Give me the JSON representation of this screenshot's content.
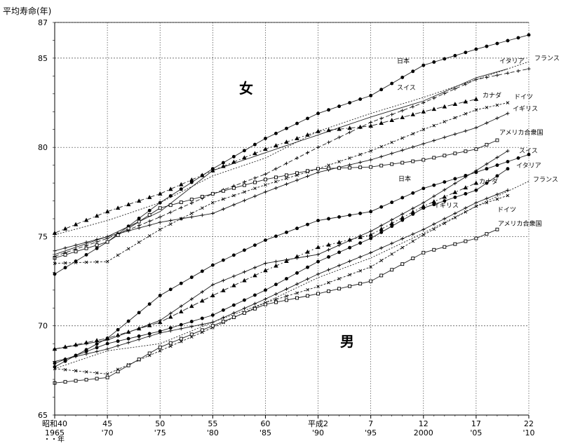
{
  "chart_data": {
    "type": "line",
    "ylabel": "平均寿命(年)",
    "ylim": [
      65,
      87
    ],
    "yticks": [
      65,
      70,
      75,
      80,
      85,
      87
    ],
    "xlim": [
      1965,
      2010
    ],
    "xticks": [
      {
        "x": 1965,
        "top": "昭和40",
        "bottom": "1965"
      },
      {
        "x": 1970,
        "top": "45",
        "bottom": "'70"
      },
      {
        "x": 1975,
        "top": "50",
        "bottom": "'75"
      },
      {
        "x": 1980,
        "top": "55",
        "bottom": "'80"
      },
      {
        "x": 1985,
        "top": "60",
        "bottom": "'85"
      },
      {
        "x": 1990,
        "top": "平成2",
        "bottom": "'90"
      },
      {
        "x": 1995,
        "top": "7",
        "bottom": "'95"
      },
      {
        "x": 2000,
        "top": "12",
        "bottom": "2000"
      },
      {
        "x": 2005,
        "top": "17",
        "bottom": "'05"
      },
      {
        "x": 2010,
        "top": "22",
        "bottom": "'10"
      }
    ],
    "xaxis_unit": "・・年",
    "grid": true,
    "group_labels": {
      "female": "女",
      "male": "男"
    },
    "series": [
      {
        "group": "female",
        "name": "日本",
        "marker": "circle",
        "dash": "",
        "x": [
          1965,
          1970,
          1975,
          1980,
          1985,
          1990,
          1995,
          2000,
          2005,
          2010
        ],
        "y": [
          72.9,
          74.7,
          76.9,
          78.8,
          80.5,
          81.9,
          82.9,
          84.6,
          85.5,
          86.3
        ]
      },
      {
        "group": "female",
        "name": "イタリア",
        "marker": "plus",
        "dash": "6 3",
        "x": [
          1965,
          1970,
          1975,
          1980,
          1985,
          1990,
          1995,
          2000,
          2005,
          2010
        ],
        "y": [
          73.9,
          74.9,
          76.1,
          77.4,
          78.5,
          80.0,
          81.4,
          82.5,
          83.8,
          84.4
        ]
      },
      {
        "group": "female",
        "name": "フランス",
        "marker": "none",
        "dash": "2 2",
        "x": [
          1965,
          1970,
          1975,
          1980,
          1985,
          1990,
          1995,
          2000,
          2005,
          2010
        ],
        "y": [
          75.1,
          75.9,
          76.9,
          78.4,
          79.4,
          80.9,
          81.9,
          82.8,
          83.8,
          84.8
        ]
      },
      {
        "group": "female",
        "name": "スイス",
        "marker": "none",
        "dash": "",
        "x": [
          1965,
          1970,
          1975,
          1980,
          1985,
          1990,
          1995,
          2000,
          2005,
          2008
        ],
        "y": [
          74.0,
          75.0,
          76.4,
          78.7,
          79.7,
          80.7,
          81.7,
          82.6,
          83.9,
          84.4
        ]
      },
      {
        "group": "female",
        "name": "カナダ",
        "marker": "triangle",
        "dash": "8 3 2 3",
        "x": [
          1965,
          1970,
          1975,
          1980,
          1985,
          1990,
          1995,
          2000,
          2005
        ],
        "y": [
          75.2,
          76.4,
          77.4,
          78.7,
          79.9,
          80.9,
          81.2,
          82.0,
          82.7
        ]
      },
      {
        "group": "female",
        "name": "ドイツ",
        "marker": "x",
        "dash": "3 2",
        "x": [
          1965,
          1970,
          1975,
          1980,
          1985,
          1990,
          1995,
          2000,
          2005,
          2008
        ],
        "y": [
          73.5,
          73.6,
          75.4,
          76.9,
          77.9,
          78.8,
          79.8,
          81.0,
          82.1,
          82.5
        ]
      },
      {
        "group": "female",
        "name": "イギリス",
        "marker": "plus",
        "dash": "",
        "x": [
          1965,
          1970,
          1975,
          1980,
          1985,
          1990,
          1995,
          2000,
          2005,
          2008
        ],
        "y": [
          74.2,
          75.0,
          75.8,
          76.3,
          77.5,
          78.6,
          79.3,
          80.2,
          81.1,
          81.9
        ]
      },
      {
        "group": "female",
        "name": "アメリカ合衆国",
        "marker": "square",
        "dash": "",
        "x": [
          1965,
          1970,
          1975,
          1980,
          1985,
          1990,
          1995,
          2000,
          2005,
          2007
        ],
        "y": [
          73.8,
          74.7,
          76.6,
          77.4,
          78.2,
          78.8,
          78.9,
          79.3,
          79.9,
          80.4
        ]
      },
      {
        "group": "male",
        "name": "日本",
        "marker": "circle",
        "dash": "",
        "x": [
          1965,
          1970,
          1975,
          1980,
          1985,
          1990,
          1995,
          2000,
          2005,
          2010
        ],
        "y": [
          67.7,
          69.3,
          71.7,
          73.4,
          74.8,
          75.9,
          76.4,
          77.7,
          78.6,
          79.6
        ]
      },
      {
        "group": "male",
        "name": "スイス",
        "marker": "plus",
        "dash": "",
        "x": [
          1965,
          1970,
          1975,
          1980,
          1985,
          1990,
          1995,
          2000,
          2005,
          2008
        ],
        "y": [
          68.7,
          69.2,
          70.3,
          72.3,
          73.5,
          74.0,
          75.3,
          76.9,
          78.7,
          79.8
        ]
      },
      {
        "group": "male",
        "name": "イタリア",
        "marker": "circle",
        "dash": "",
        "x": [
          1965,
          1970,
          1975,
          1980,
          1985,
          1990,
          1995,
          2000,
          2005,
          2008
        ],
        "y": [
          67.9,
          69.0,
          69.7,
          70.6,
          72.0,
          73.6,
          74.9,
          76.6,
          77.6,
          78.8
        ]
      },
      {
        "group": "male",
        "name": "カナダ",
        "marker": "triangle",
        "dash": "8 3 2 3",
        "x": [
          1965,
          1970,
          1975,
          1980,
          1985,
          1990,
          1995,
          2000,
          2005
        ],
        "y": [
          68.7,
          69.3,
          70.2,
          71.7,
          73.1,
          74.4,
          75.1,
          76.7,
          78.0
        ]
      },
      {
        "group": "male",
        "name": "フランス",
        "marker": "none",
        "dash": "2 2",
        "x": [
          1965,
          1970,
          1975,
          1980,
          1985,
          1990,
          1995,
          2000,
          2005,
          2010
        ],
        "y": [
          67.6,
          68.6,
          69.0,
          70.2,
          71.3,
          72.7,
          73.8,
          75.2,
          76.7,
          78.1
        ]
      },
      {
        "group": "male",
        "name": "イギリス",
        "marker": "plus",
        "dash": "",
        "x": [
          1965,
          1970,
          1975,
          1980,
          1985,
          1990,
          1995,
          2000,
          2005,
          2008
        ],
        "y": [
          68.0,
          68.7,
          69.6,
          70.2,
          71.5,
          72.9,
          74.1,
          75.4,
          76.9,
          77.6
        ]
      },
      {
        "group": "male",
        "name": "ドイツ",
        "marker": "x",
        "dash": "3 2",
        "x": [
          1965,
          1970,
          1975,
          1980,
          1985,
          1990,
          1995,
          2000,
          2005,
          2008
        ],
        "y": [
          67.6,
          67.3,
          68.6,
          69.9,
          71.3,
          72.2,
          73.3,
          75.1,
          76.7,
          77.3
        ]
      },
      {
        "group": "male",
        "name": "アメリカ合衆国",
        "marker": "square",
        "dash": "",
        "x": [
          1965,
          1970,
          1975,
          1980,
          1985,
          1990,
          1995,
          2000,
          2005,
          2007
        ],
        "y": [
          66.8,
          67.1,
          68.8,
          70.0,
          71.2,
          71.8,
          72.5,
          74.1,
          74.9,
          75.4
        ]
      }
    ]
  }
}
